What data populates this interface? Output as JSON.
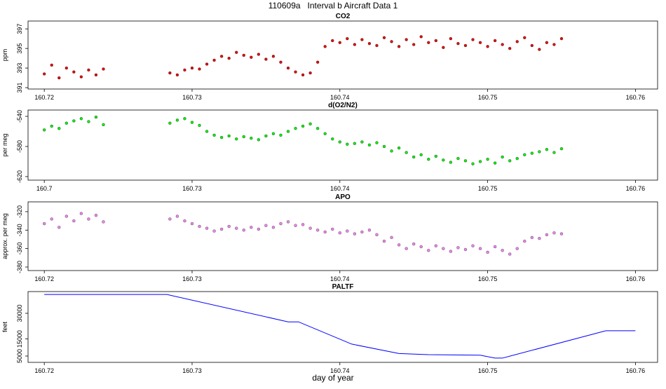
{
  "title": "110609a   Interval b Aircraft Data 1",
  "xlabel": "day of year",
  "chart_data": [
    {
      "type": "scatter",
      "title": "CO2",
      "ylabel": "ppm",
      "color": "#e00000",
      "xlim": [
        160.7189,
        160.7615
      ],
      "ylim": [
        390.86,
        397.8
      ],
      "xticks": [
        160.72,
        160.73,
        160.74,
        160.75,
        160.76
      ],
      "yticks": [
        391,
        393,
        395,
        397
      ],
      "x": [
        160.72,
        160.7205,
        160.721,
        160.7215,
        160.722,
        160.7225,
        160.723,
        160.7235,
        160.724,
        160.7285,
        160.729,
        160.7295,
        160.73,
        160.7305,
        160.731,
        160.7315,
        160.732,
        160.7325,
        160.733,
        160.7335,
        160.734,
        160.7345,
        160.735,
        160.7355,
        160.736,
        160.7365,
        160.737,
        160.7375,
        160.738,
        160.7385,
        160.739,
        160.7395,
        160.74,
        160.7405,
        160.741,
        160.7415,
        160.742,
        160.7425,
        160.743,
        160.7435,
        160.744,
        160.7445,
        160.745,
        160.7455,
        160.746,
        160.7465,
        160.747,
        160.7475,
        160.748,
        160.7485,
        160.749,
        160.7495,
        160.75,
        160.7505,
        160.751,
        160.7515,
        160.752,
        160.7525,
        160.753,
        160.7535,
        160.754,
        160.7545,
        160.755
      ],
      "values": [
        392.4,
        393.3,
        392.0,
        393.0,
        392.6,
        392.1,
        392.8,
        392.3,
        392.9,
        392.5,
        392.3,
        392.8,
        393.0,
        392.9,
        393.4,
        393.8,
        394.2,
        394.0,
        394.6,
        394.3,
        394.1,
        394.4,
        393.9,
        394.2,
        393.6,
        393.0,
        392.6,
        392.3,
        392.5,
        393.6,
        395.2,
        395.8,
        395.6,
        396.0,
        395.4,
        395.9,
        395.5,
        395.3,
        396.1,
        395.7,
        395.2,
        395.9,
        395.4,
        396.2,
        395.6,
        395.8,
        395.1,
        396.0,
        395.5,
        395.3,
        395.9,
        395.6,
        395.2,
        395.8,
        395.4,
        395.0,
        395.7,
        396.1,
        395.3,
        394.9,
        395.6,
        395.4,
        396.0
      ]
    },
    {
      "type": "scatter",
      "title": "d(O2/N2)",
      "ylabel": "per meg",
      "color": "#00ee00",
      "xlim": [
        160.7189,
        160.7615
      ],
      "ylim": [
        -624.7,
        -531.6
      ],
      "xticks": [
        {
          "value": 160.72,
          "label": "160.7"
        },
        160.73,
        160.74,
        160.75,
        160.76
      ],
      "yticks": [
        -540,
        -580,
        -620
      ],
      "x": [
        160.72,
        160.7205,
        160.721,
        160.7215,
        160.722,
        160.7225,
        160.723,
        160.7235,
        160.724,
        160.7285,
        160.729,
        160.7295,
        160.73,
        160.7305,
        160.731,
        160.7315,
        160.732,
        160.7325,
        160.733,
        160.7335,
        160.734,
        160.7345,
        160.735,
        160.7355,
        160.736,
        160.7365,
        160.737,
        160.7375,
        160.738,
        160.7385,
        160.739,
        160.7395,
        160.74,
        160.7405,
        160.741,
        160.7415,
        160.742,
        160.7425,
        160.743,
        160.7435,
        160.744,
        160.7445,
        160.745,
        160.7455,
        160.746,
        160.7465,
        160.747,
        160.7475,
        160.748,
        160.7485,
        160.749,
        160.7495,
        160.75,
        160.7505,
        160.751,
        160.7515,
        160.752,
        160.7525,
        160.753,
        160.7535,
        160.754,
        160.7545,
        160.755
      ],
      "values": [
        -558,
        -553,
        -556,
        -549,
        -546,
        -543,
        -547,
        -541,
        -551,
        -549,
        -545,
        -543,
        -548,
        -552,
        -560,
        -565,
        -568,
        -566,
        -570,
        -567,
        -569,
        -571,
        -566,
        -563,
        -565,
        -560,
        -556,
        -553,
        -550,
        -556,
        -563,
        -570,
        -574,
        -577,
        -576,
        -574,
        -578,
        -575,
        -580,
        -586,
        -582,
        -588,
        -594,
        -591,
        -597,
        -593,
        -598,
        -601,
        -596,
        -599,
        -603,
        -600,
        -597,
        -602,
        -594,
        -599,
        -596,
        -591,
        -589,
        -587,
        -584,
        -588,
        -583
      ]
    },
    {
      "type": "scatter",
      "title": "APO",
      "ylabel": "approx. per meg",
      "color": "#ee82ee",
      "xlim": [
        160.7189,
        160.7615
      ],
      "ylim": [
        -383.8,
        -309.4
      ],
      "xticks": [
        160.72,
        160.73,
        160.74,
        160.75,
        160.76
      ],
      "yticks": [
        -320,
        -340,
        -360,
        -380
      ],
      "x": [
        160.72,
        160.7205,
        160.721,
        160.7215,
        160.722,
        160.7225,
        160.723,
        160.7235,
        160.724,
        160.7285,
        160.729,
        160.7295,
        160.73,
        160.7305,
        160.731,
        160.7315,
        160.732,
        160.7325,
        160.733,
        160.7335,
        160.734,
        160.7345,
        160.735,
        160.7355,
        160.736,
        160.7365,
        160.737,
        160.7375,
        160.738,
        160.7385,
        160.739,
        160.7395,
        160.74,
        160.7405,
        160.741,
        160.7415,
        160.742,
        160.7425,
        160.743,
        160.7435,
        160.744,
        160.7445,
        160.745,
        160.7455,
        160.746,
        160.7465,
        160.747,
        160.7475,
        160.748,
        160.7485,
        160.749,
        160.7495,
        160.75,
        160.7505,
        160.751,
        160.7515,
        160.752,
        160.7525,
        160.753,
        160.7535,
        160.754,
        160.7545,
        160.755
      ],
      "values": [
        -333,
        -328,
        -337,
        -325,
        -330,
        -322,
        -328,
        -324,
        -331,
        -328,
        -325,
        -330,
        -333,
        -336,
        -338,
        -341,
        -339,
        -336,
        -338,
        -340,
        -337,
        -339,
        -335,
        -337,
        -333,
        -331,
        -335,
        -334,
        -338,
        -340,
        -342,
        -339,
        -343,
        -341,
        -344,
        -342,
        -340,
        -345,
        -352,
        -348,
        -356,
        -360,
        -355,
        -358,
        -362,
        -357,
        -360,
        -363,
        -359,
        -361,
        -357,
        -360,
        -364,
        -358,
        -362,
        -366,
        -360,
        -352,
        -348,
        -349,
        -345,
        -343,
        -344
      ]
    },
    {
      "type": "line",
      "title": "PALTF",
      "ylabel": "feet",
      "color": "#0000ff",
      "xlim": [
        160.7189,
        160.7615
      ],
      "ylim": [
        1310,
        42710
      ],
      "xticks": [
        160.72,
        160.73,
        160.74,
        160.75,
        160.76
      ],
      "yticks": [
        5000,
        15000,
        30000
      ],
      "x": [
        160.72,
        160.7283,
        160.7365,
        160.7372,
        160.7408,
        160.744,
        160.746,
        160.7495,
        160.7505,
        160.751,
        160.758,
        160.76
      ],
      "values": [
        41000,
        41000,
        25000,
        25000,
        12000,
        6500,
        5800,
        5500,
        3800,
        3800,
        19800,
        19800
      ]
    }
  ]
}
